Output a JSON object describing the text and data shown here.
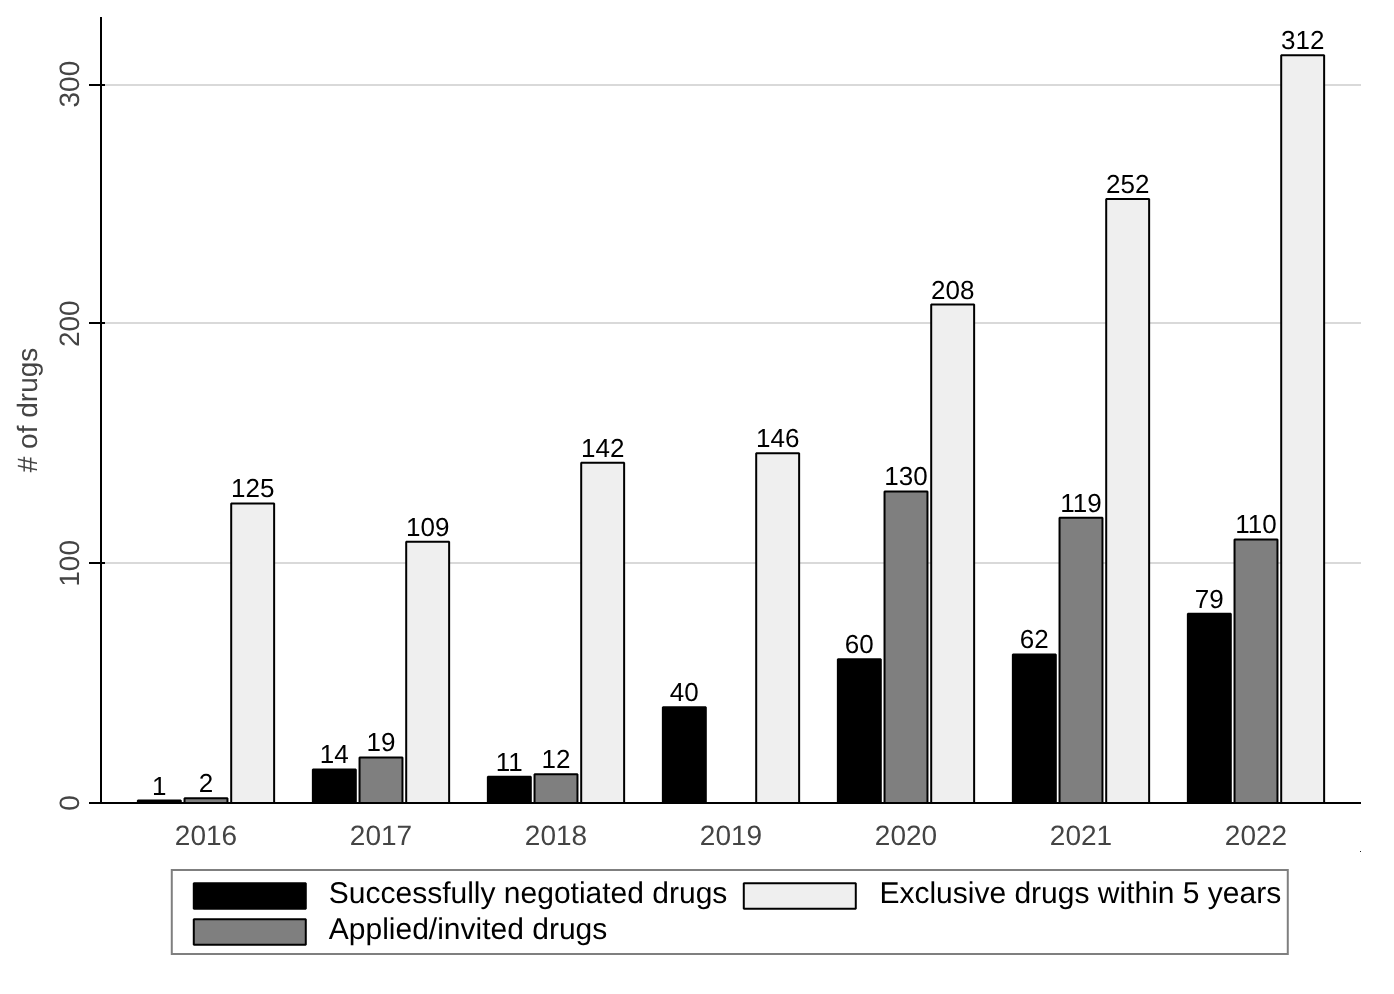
{
  "chart_data": {
    "type": "bar",
    "ylabel": "# of drugs",
    "categories": [
      "2016",
      "2017",
      "2018",
      "2019",
      "2020",
      "2021",
      "2022"
    ],
    "series": [
      {
        "name": "Successfully negotiated drugs",
        "color": "#000000",
        "values": [
          1,
          14,
          11,
          40,
          60,
          62,
          79
        ]
      },
      {
        "name": "Applied/invited drugs",
        "color": "#7f7f7f",
        "values": [
          2,
          19,
          12,
          null,
          130,
          119,
          110
        ]
      },
      {
        "name": "Exclusive drugs within 5 years",
        "color": "#efefef",
        "values": [
          125,
          109,
          142,
          146,
          208,
          252,
          312
        ]
      }
    ],
    "ylim": [
      0,
      328
    ],
    "yticks": [
      0,
      100,
      200,
      300
    ],
    "grid": "y",
    "legend": "bottom",
    "data_labels": true
  }
}
